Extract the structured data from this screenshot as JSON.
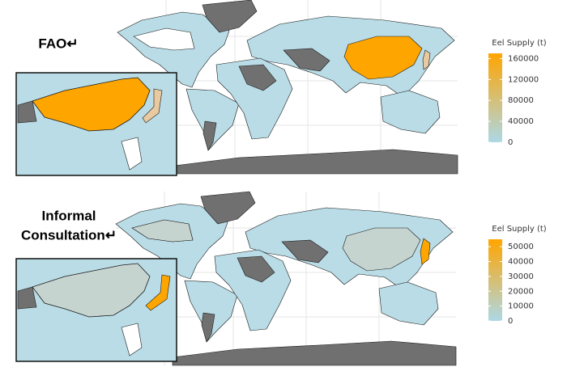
{
  "maps": [
    {
      "label_lines": [
        "FAO↵"
      ],
      "legend": {
        "title": "Eel Supply (t)",
        "lim": [
          0,
          170000
        ],
        "ticks": [
          0,
          40000,
          80000,
          120000,
          160000
        ],
        "colors": [
          "#add8e6",
          "#ffa500"
        ]
      }
    },
    {
      "label_lines": [
        "Informal",
        "Consultation↵"
      ],
      "legend": {
        "title": "Eel Supply (t)",
        "lim": [
          0,
          55000
        ],
        "ticks": [
          0,
          10000,
          20000,
          30000,
          40000,
          50000
        ],
        "colors": [
          "#add8e6",
          "#ffa500"
        ]
      }
    }
  ]
}
